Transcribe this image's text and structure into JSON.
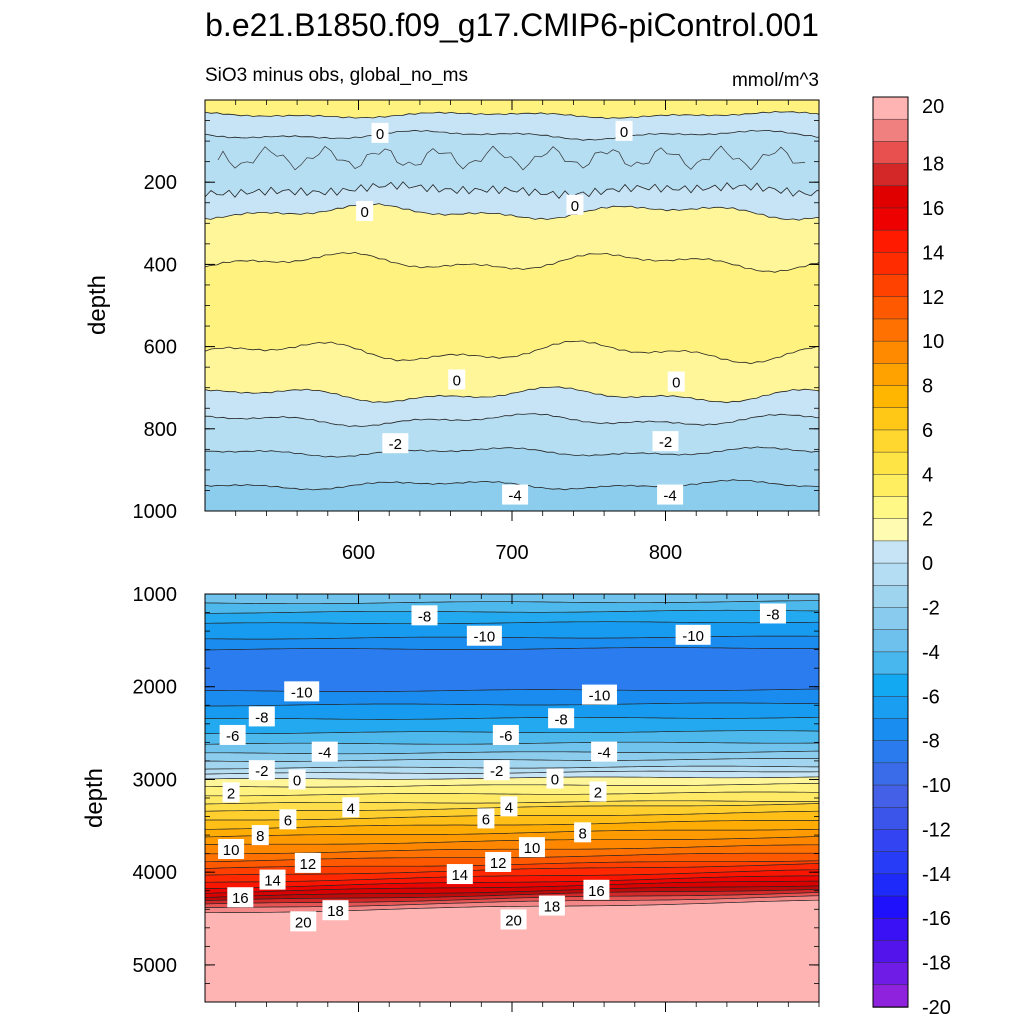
{
  "chart_data": {
    "type": "contour",
    "title": "b.e21.B1850.f09_g17.CMIP6-piControl.001",
    "subtitle_left": "SiO3 minus obs, global_no_ms",
    "subtitle_right": "mmol/m^3",
    "colors": {
      "neg_fill": [
        "#c6e4f5",
        "#b5def3",
        "#a2d6f0",
        "#8ccdee",
        "#6fc3ec",
        "#4cb8ec",
        "#23a9ef",
        "#169bf0",
        "#1a8cf0",
        "#2b7cee",
        "#356bea",
        "#3b5ce6",
        "#3a4ff0",
        "#2d3cf7",
        "#1f28fb",
        "#2a12fc",
        "#4a10f2",
        "#7019e6",
        "#8f22dc"
      ],
      "pos_fill": [
        "#fff69a",
        "#fff27f",
        "#ffe965",
        "#ffde4c",
        "#ffcf2e",
        "#ffbf16",
        "#ffac04",
        "#ff9b00",
        "#ff8700",
        "#ff7100",
        "#ff5900",
        "#ff3f00",
        "#ff2800",
        "#fa1500",
        "#ec0500",
        "#d90000",
        "#c00a0a",
        "#d42727",
        "#e65454",
        "#f38787",
        "#ffb4b4"
      ]
    },
    "colorbar": {
      "labels": [
        "20",
        "18",
        "16",
        "14",
        "12",
        "10",
        "8",
        "6",
        "4",
        "2",
        "0",
        "-2",
        "-4",
        "-6",
        "-8",
        "-10",
        "-12",
        "-14",
        "-16",
        "-18",
        "-20"
      ],
      "colors": [
        "#ffb4b4",
        "#f08080",
        "#e85050",
        "#d42727",
        "#e00000",
        "#ee0000",
        "#ff1a00",
        "#ff2c00",
        "#ff4200",
        "#ff5900",
        "#ff7100",
        "#ff8a00",
        "#ffa200",
        "#ffb600",
        "#ffc817",
        "#ffd72e",
        "#ffe445",
        "#ffef60",
        "#fff887",
        "#fffbb0",
        "#c6e4f5",
        "#b4dcf2",
        "#9fd4ef",
        "#88cbee",
        "#6ec1ec",
        "#47b7ee",
        "#13a8f2",
        "#1a9ef2",
        "#1a8df0",
        "#2a7bee",
        "#3a6ce9",
        "#4360e6",
        "#3b55ea",
        "#3345f2",
        "#263cf7",
        "#1d2afa",
        "#1f11fb",
        "#3a10f5",
        "#5314ec",
        "#6e1ce6",
        "#8f22dc"
      ]
    },
    "panels": [
      {
        "name": "upper",
        "xlim": [
          500,
          900
        ],
        "ylim": [
          0,
          1000
        ],
        "x_ticks": [
          "600",
          "700",
          "800"
        ],
        "y_ticks": [
          "200",
          "400",
          "600",
          "800",
          "1000"
        ],
        "ylabel": "depth",
        "contour_labels": [
          {
            "x": 614,
            "y": 80,
            "text": "0"
          },
          {
            "x": 773,
            "y": 75,
            "text": "0"
          },
          {
            "x": 604,
            "y": 270,
            "text": "0"
          },
          {
            "x": 741,
            "y": 255,
            "text": "0"
          },
          {
            "x": 664,
            "y": 680,
            "text": "0"
          },
          {
            "x": 807,
            "y": 685,
            "text": "0"
          },
          {
            "x": 624,
            "y": 835,
            "text": "-2"
          },
          {
            "x": 800,
            "y": 830,
            "text": "-2"
          },
          {
            "x": 702,
            "y": 960,
            "text": "-4"
          },
          {
            "x": 803,
            "y": 960,
            "text": "-4"
          }
        ]
      },
      {
        "name": "lower",
        "xlim": [
          500,
          900
        ],
        "ylim": [
          1000,
          5400
        ],
        "x_ticks": [
          "600",
          "700",
          "800"
        ],
        "y_ticks": [
          "1000",
          "2000",
          "3000",
          "4000",
          "5000"
        ],
        "ylabel": "depth",
        "contour_labels": [
          {
            "x": 643,
            "y": 1230,
            "text": "-8"
          },
          {
            "x": 870,
            "y": 1210,
            "text": "-8"
          },
          {
            "x": 682,
            "y": 1450,
            "text": "-10"
          },
          {
            "x": 818,
            "y": 1440,
            "text": "-10"
          },
          {
            "x": 563,
            "y": 2050,
            "text": "-10"
          },
          {
            "x": 757,
            "y": 2085,
            "text": "-10"
          },
          {
            "x": 537,
            "y": 2320,
            "text": "-8"
          },
          {
            "x": 732,
            "y": 2340,
            "text": "-8"
          },
          {
            "x": 518,
            "y": 2520,
            "text": "-6"
          },
          {
            "x": 696,
            "y": 2520,
            "text": "-6"
          },
          {
            "x": 578,
            "y": 2700,
            "text": "-4"
          },
          {
            "x": 760,
            "y": 2700,
            "text": "-4"
          },
          {
            "x": 537,
            "y": 2900,
            "text": "-2"
          },
          {
            "x": 690,
            "y": 2900,
            "text": "-2"
          },
          {
            "x": 560,
            "y": 3000,
            "text": "0"
          },
          {
            "x": 728,
            "y": 2990,
            "text": "0"
          },
          {
            "x": 517,
            "y": 3140,
            "text": "2"
          },
          {
            "x": 756,
            "y": 3130,
            "text": "2"
          },
          {
            "x": 595,
            "y": 3300,
            "text": "4"
          },
          {
            "x": 698,
            "y": 3290,
            "text": "4"
          },
          {
            "x": 554,
            "y": 3430,
            "text": "6"
          },
          {
            "x": 683,
            "y": 3420,
            "text": "6"
          },
          {
            "x": 536,
            "y": 3600,
            "text": "8"
          },
          {
            "x": 746,
            "y": 3570,
            "text": "8"
          },
          {
            "x": 517,
            "y": 3750,
            "text": "10"
          },
          {
            "x": 713,
            "y": 3730,
            "text": "10"
          },
          {
            "x": 567,
            "y": 3900,
            "text": "12"
          },
          {
            "x": 691,
            "y": 3890,
            "text": "12"
          },
          {
            "x": 544,
            "y": 4080,
            "text": "14"
          },
          {
            "x": 666,
            "y": 4020,
            "text": "14"
          },
          {
            "x": 523,
            "y": 4270,
            "text": "16"
          },
          {
            "x": 755,
            "y": 4190,
            "text": "16"
          },
          {
            "x": 585,
            "y": 4410,
            "text": "18"
          },
          {
            "x": 726,
            "y": 4360,
            "text": "18"
          },
          {
            "x": 564,
            "y": 4530,
            "text": "20"
          },
          {
            "x": 701,
            "y": 4510,
            "text": "20"
          }
        ]
      }
    ]
  }
}
